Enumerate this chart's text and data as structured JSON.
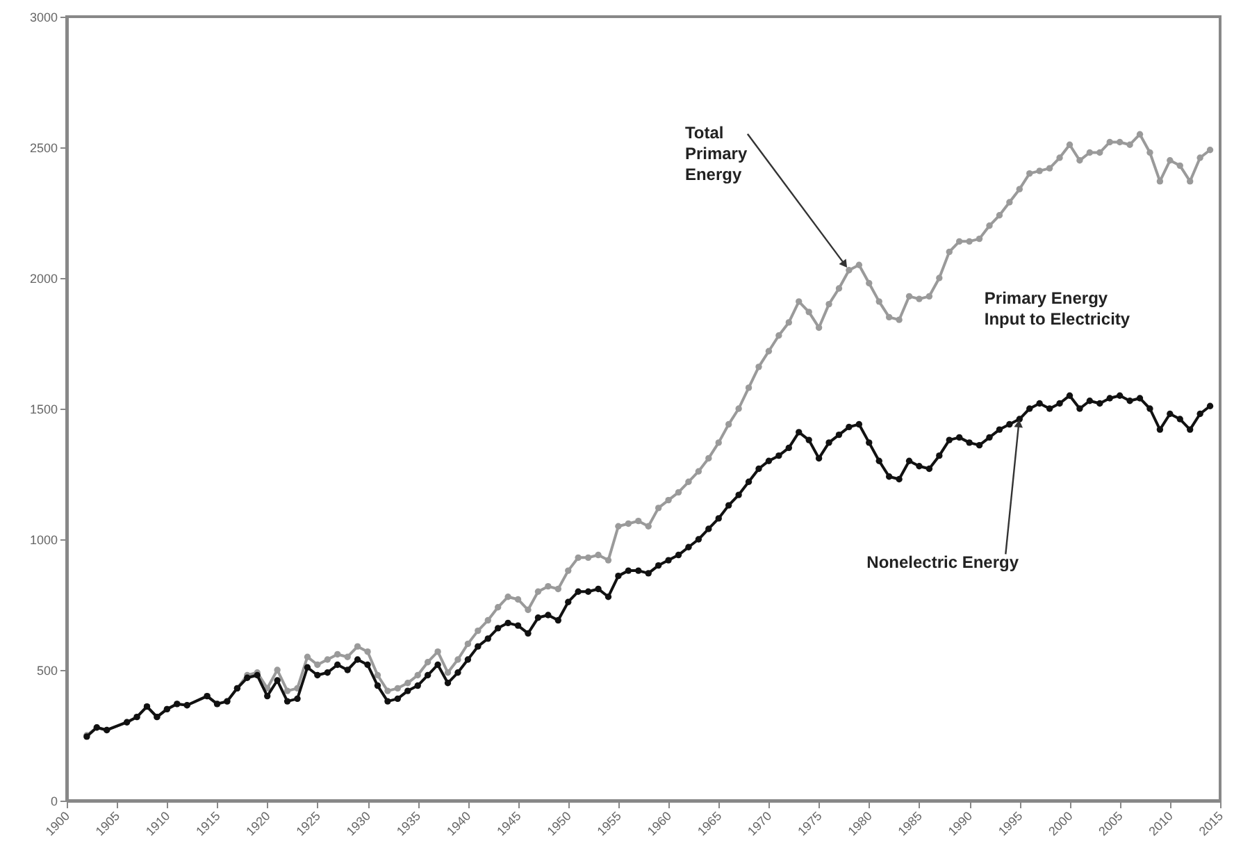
{
  "chart_data": {
    "type": "line",
    "x": [
      1902,
      1903,
      1904,
      1906,
      1907,
      1908,
      1909,
      1910,
      1911,
      1912,
      1914,
      1915,
      1916,
      1917,
      1918,
      1919,
      1920,
      1921,
      1922,
      1923,
      1924,
      1925,
      1926,
      1927,
      1928,
      1929,
      1930,
      1931,
      1932,
      1933,
      1934,
      1935,
      1936,
      1937,
      1938,
      1939,
      1940,
      1941,
      1942,
      1943,
      1944,
      1945,
      1946,
      1947,
      1948,
      1949,
      1950,
      1951,
      1952,
      1953,
      1954,
      1955,
      1956,
      1957,
      1958,
      1959,
      1960,
      1961,
      1962,
      1963,
      1964,
      1965,
      1966,
      1967,
      1968,
      1969,
      1970,
      1971,
      1972,
      1973,
      1974,
      1975,
      1976,
      1977,
      1978,
      1979,
      1980,
      1981,
      1982,
      1983,
      1984,
      1985,
      1986,
      1987,
      1988,
      1989,
      1990,
      1991,
      1992,
      1993,
      1994,
      1995,
      1996,
      1997,
      1998,
      1999,
      2000,
      2001,
      2002,
      2003,
      2004,
      2005,
      2006,
      2007,
      2008,
      2009,
      2010,
      2011,
      2012,
      2013,
      2014
    ],
    "series": [
      {
        "color": "#9a9a9a",
        "values": [
          250,
          280,
          270,
          300,
          320,
          360,
          320,
          350,
          370,
          365,
          400,
          370,
          380,
          430,
          480,
          490,
          430,
          500,
          420,
          430,
          550,
          520,
          540,
          560,
          550,
          590,
          570,
          480,
          420,
          430,
          450,
          480,
          530,
          570,
          490,
          540,
          600,
          650,
          690,
          740,
          780,
          770,
          730,
          800,
          820,
          810,
          880,
          930,
          930,
          940,
          920,
          1050,
          1060,
          1070,
          1050,
          1120,
          1150,
          1180,
          1220,
          1260,
          1310,
          1370,
          1440,
          1500,
          1580,
          1660,
          1720,
          1780,
          1830,
          1910,
          1870,
          1810,
          1900,
          1960,
          2030,
          2050,
          1980,
          1910,
          1850,
          1840,
          1930,
          1920,
          1930,
          2000,
          2100,
          2140,
          2140,
          2150,
          2200,
          2240,
          2290,
          2340,
          2400,
          2410,
          2420,
          2460,
          2510,
          2450,
          2480,
          2480,
          2520,
          2520,
          2510,
          2550,
          2480,
          2370,
          2450,
          2430,
          2370,
          2460,
          2490
        ]
      },
      {
        "color": "#111111",
        "values": [
          245,
          280,
          270,
          300,
          320,
          360,
          320,
          350,
          370,
          365,
          400,
          370,
          380,
          430,
          470,
          480,
          400,
          460,
          380,
          390,
          510,
          480,
          490,
          520,
          500,
          540,
          520,
          440,
          380,
          390,
          420,
          440,
          480,
          520,
          450,
          490,
          540,
          590,
          620,
          660,
          680,
          670,
          640,
          700,
          710,
          690,
          760,
          800,
          800,
          810,
          780,
          860,
          880,
          880,
          870,
          900,
          920,
          940,
          970,
          1000,
          1040,
          1080,
          1130,
          1170,
          1220,
          1270,
          1300,
          1320,
          1350,
          1410,
          1380,
          1310,
          1370,
          1400,
          1430,
          1440,
          1370,
          1300,
          1240,
          1230,
          1300,
          1280,
          1270,
          1320,
          1380,
          1390,
          1370,
          1360,
          1390,
          1420,
          1440,
          1460,
          1500,
          1520,
          1500,
          1520,
          1550,
          1500,
          1530,
          1520,
          1540,
          1550,
          1530,
          1540,
          1500,
          1420,
          1480,
          1460,
          1420,
          1480,
          1510
        ]
      }
    ],
    "xlim": [
      1900,
      2015
    ],
    "xticks": [
      1900,
      1905,
      1910,
      1915,
      1920,
      1925,
      1930,
      1935,
      1940,
      1945,
      1950,
      1955,
      1960,
      1965,
      1970,
      1975,
      1980,
      1985,
      1990,
      1995,
      2000,
      2005,
      2010,
      2015
    ],
    "ylim": [
      0,
      3000
    ],
    "yticks": [
      0,
      500,
      1000,
      1500,
      2000,
      2500,
      3000
    ],
    "grid": false,
    "marker": "circle",
    "line_style": "solid",
    "annotations": [
      {
        "text": "Total\nPrimary\nEnergy",
        "x": 1978,
        "y": 2030
      },
      "Primary Energy\nInput to Electricity",
      {
        "text": "Nonelectric Energy",
        "x": 1995,
        "y": 1470
      }
    ]
  }
}
